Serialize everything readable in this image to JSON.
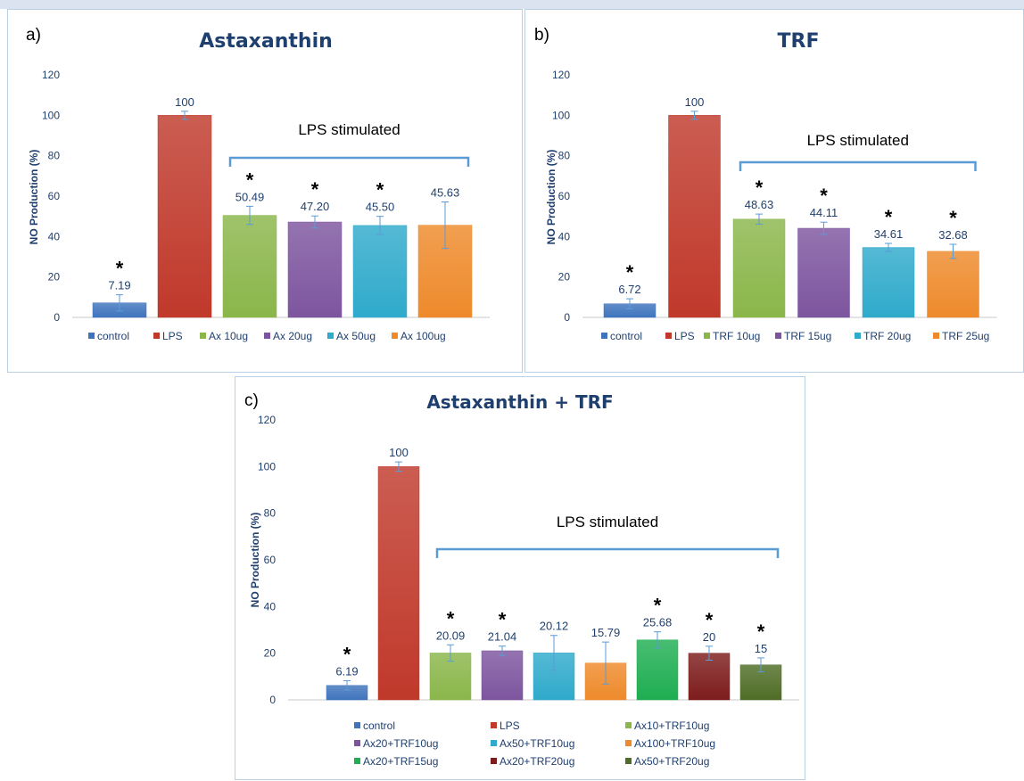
{
  "chart_data": [
    {
      "type": "bar",
      "panel_label": "a)",
      "title": "Astaxanthin",
      "ylabel": "NO Production (%)",
      "xlabel": "",
      "ylim": [
        0,
        120
      ],
      "yticks": [
        0,
        20,
        40,
        60,
        80,
        100,
        120
      ],
      "grid": false,
      "legend_position": "bottom",
      "categories": [
        "control",
        "LPS",
        "Ax 10ug",
        "Ax 20ug",
        "Ax 50ug",
        "Ax 100ug"
      ],
      "values": [
        7.19,
        100,
        50.49,
        47.2,
        45.5,
        45.63
      ],
      "value_labels": [
        "7.19",
        "100",
        "50.49",
        "47.20",
        "45.50",
        "45.63"
      ],
      "errors": [
        4,
        2,
        4.5,
        3,
        4.5,
        11.5
      ],
      "significant": [
        true,
        false,
        true,
        true,
        true,
        false
      ],
      "colors": [
        "#3f74bd",
        "#c0392b",
        "#8ab64a",
        "#7d559f",
        "#2faacb",
        "#ee8a2b"
      ],
      "annotation": "LPS stimulated",
      "bracket_from": 2,
      "bracket_to": 5
    },
    {
      "type": "bar",
      "panel_label": "b)",
      "title": "TRF",
      "ylabel": "NO Production (%)",
      "xlabel": "",
      "ylim": [
        0,
        120
      ],
      "yticks": [
        0,
        20,
        40,
        60,
        80,
        100,
        120
      ],
      "grid": false,
      "legend_position": "bottom",
      "categories": [
        "control",
        "LPS",
        "TRF 10ug",
        "TRF 15ug",
        "TRF 20ug",
        "TRF 25ug"
      ],
      "values": [
        6.72,
        100,
        48.63,
        44.11,
        34.61,
        32.68
      ],
      "value_labels": [
        "6.72",
        "100",
        "48.63",
        "44.11",
        "34.61",
        "32.68"
      ],
      "errors": [
        2.5,
        2,
        2.5,
        3,
        2,
        3.5
      ],
      "significant": [
        true,
        false,
        true,
        true,
        true,
        true
      ],
      "colors": [
        "#3f74bd",
        "#c0392b",
        "#8ab64a",
        "#7d559f",
        "#2faacb",
        "#ee8a2b"
      ],
      "annotation": "LPS stimulated",
      "bracket_from": 2,
      "bracket_to": 5
    },
    {
      "type": "bar",
      "panel_label": "c)",
      "title": "Astaxanthin + TRF",
      "ylabel": "NO Production (%)",
      "xlabel": "",
      "ylim": [
        0,
        120
      ],
      "yticks": [
        0,
        20,
        40,
        60,
        80,
        100,
        120
      ],
      "grid": false,
      "legend_position": "bottom",
      "categories": [
        "control",
        "LPS",
        "Ax10+TRF10ug",
        "Ax20+TRF10ug",
        "Ax50+TRF10ug",
        "Ax100+TRF10ug",
        "Ax20+TRF15ug",
        "Ax20+TRF20ug",
        "Ax50+TRF20ug"
      ],
      "values": [
        6.19,
        100,
        20.09,
        21.04,
        20.12,
        15.79,
        25.68,
        20,
        15
      ],
      "value_labels": [
        "6.19",
        "100",
        "20.09",
        "21.04",
        "20.12",
        "15.79",
        "25.68",
        "20",
        "15"
      ],
      "errors": [
        2,
        2,
        3.5,
        2,
        7.5,
        9,
        3.5,
        3,
        3
      ],
      "significant": [
        true,
        false,
        true,
        true,
        false,
        false,
        true,
        true,
        true
      ],
      "colors": [
        "#3f74bd",
        "#c0392b",
        "#8ab64a",
        "#7d559f",
        "#2faacb",
        "#ee8a2b",
        "#1fae52",
        "#7d1c1c",
        "#4f6d26"
      ],
      "annotation": "LPS stimulated",
      "bracket_from": 2,
      "bracket_to": 8
    }
  ]
}
